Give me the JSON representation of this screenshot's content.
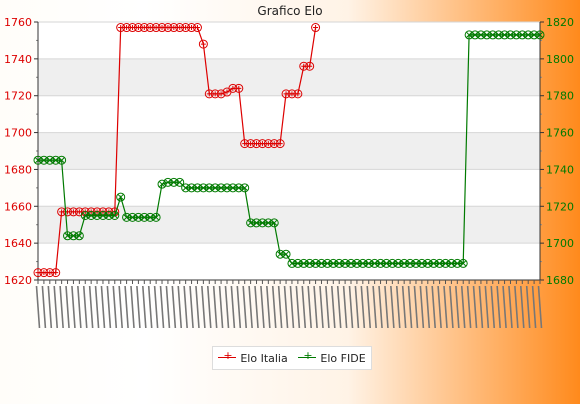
{
  "chart_data": {
    "type": "line",
    "title": "Grafico Elo",
    "left_axis": {
      "ylim": [
        1620,
        1760
      ],
      "ticks": [
        "1620",
        "1640",
        "1660",
        "1680",
        "1700",
        "1720",
        "1740",
        "1760"
      ],
      "color": "#dd0000"
    },
    "right_axis": {
      "ylim": [
        1680,
        1820
      ],
      "ticks": [
        "1680",
        "1700",
        "1720",
        "1740",
        "1760",
        "1780",
        "1800",
        "1820"
      ],
      "color": "#007a00"
    },
    "grid": true,
    "legend_position": "bottom",
    "series": [
      {
        "name": "Elo Italia",
        "axis": "left",
        "color": "#dd0000",
        "marker": "+",
        "values": [
          1624,
          1624,
          1624,
          1624,
          1657,
          1657,
          1657,
          1657,
          1657,
          1657,
          1657,
          1657,
          1657,
          1657,
          1757,
          1757,
          1757,
          1757,
          1757,
          1757,
          1757,
          1757,
          1757,
          1757,
          1757,
          1757,
          1757,
          1757,
          1748,
          1721,
          1721,
          1721,
          1722,
          1724,
          1724,
          1694,
          1694,
          1694,
          1694,
          1694,
          1694,
          1694,
          1721,
          1721,
          1721,
          1736,
          1736,
          1757
        ]
      },
      {
        "name": "Elo FIDE",
        "axis": "right",
        "color": "#007a00",
        "marker": "x",
        "values": [
          1745,
          1745,
          1745,
          1745,
          1745,
          1704,
          1704,
          1704,
          1715,
          1715,
          1715,
          1715,
          1715,
          1715,
          1725,
          1714,
          1714,
          1714,
          1714,
          1714,
          1714,
          1732,
          1733,
          1733,
          1733,
          1730,
          1730,
          1730,
          1730,
          1730,
          1730,
          1730,
          1730,
          1730,
          1730,
          1730,
          1711,
          1711,
          1711,
          1711,
          1711,
          1694,
          1694,
          1689,
          1689,
          1689,
          1689,
          1689,
          1689,
          1689,
          1689,
          1689,
          1689,
          1689,
          1689,
          1689,
          1689,
          1689,
          1689,
          1689,
          1689,
          1689,
          1689,
          1689,
          1689,
          1689,
          1689,
          1689,
          1689,
          1689,
          1689,
          1689,
          1689,
          1813,
          1813,
          1813,
          1813,
          1813,
          1813,
          1813,
          1813,
          1813,
          1813,
          1813,
          1813,
          1813
        ]
      }
    ]
  }
}
